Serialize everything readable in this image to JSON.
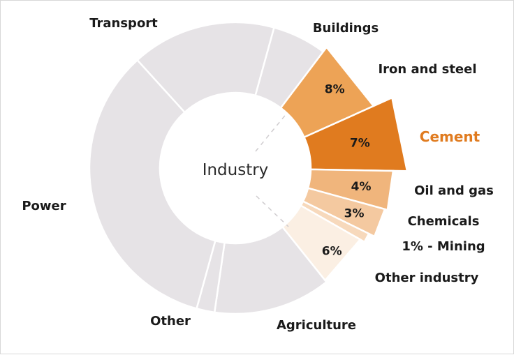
{
  "chart_data": {
    "type": "pie",
    "subtype": "donut-with-exploded-breakdown",
    "center_label": "Industry",
    "highlight_color": "#e07b1f",
    "segments": [
      {
        "name": "Transport",
        "label": "Transport",
        "group": "sector",
        "value": 16,
        "color": "#e6e3e6"
      },
      {
        "name": "Buildings",
        "label": "Buildings",
        "group": "sector",
        "value": 6,
        "color": "#e6e3e6"
      },
      {
        "name": "Iron and steel",
        "label": "Iron and steel",
        "group": "industry",
        "value": 8,
        "pct_label": "8%",
        "color": "#eda356"
      },
      {
        "name": "Cement",
        "label": "Cement",
        "group": "industry",
        "value": 7,
        "pct_label": "7%",
        "color": "#e07b1f",
        "highlighted": true
      },
      {
        "name": "Oil and gas",
        "label": "Oil and gas",
        "group": "industry",
        "value": 4,
        "pct_label": "4%",
        "color": "#f0b57c"
      },
      {
        "name": "Chemicals",
        "label": "Chemicals",
        "group": "industry",
        "value": 3,
        "pct_label": "3%",
        "color": "#f4c9a0"
      },
      {
        "name": "Mining",
        "label": "1% - Mining",
        "group": "industry",
        "value": 1,
        "color": "#f7d9bc"
      },
      {
        "name": "Other industry",
        "label": "Other industry",
        "group": "industry",
        "value": 6,
        "pct_label": "6%",
        "color": "#fbefe3"
      },
      {
        "name": "Agriculture",
        "label": "Agriculture",
        "group": "sector",
        "value": 13,
        "color": "#e6e3e6"
      },
      {
        "name": "Other",
        "label": "Other",
        "group": "sector",
        "value": 2,
        "color": "#e6e3e6"
      },
      {
        "name": "Power",
        "label": "Power",
        "group": "sector",
        "value": 34,
        "color": "#e6e3e6"
      }
    ]
  }
}
